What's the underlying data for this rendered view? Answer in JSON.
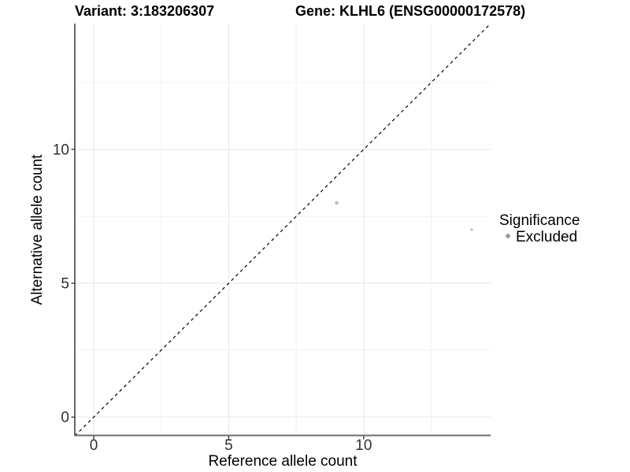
{
  "title": {
    "variant": "Variant: 3:183206307",
    "gene": "Gene: KLHL6 (ENSG00000172578)"
  },
  "chart_data": {
    "type": "scatter",
    "title": "Variant: 3:183206307 — Gene: KLHL6 (ENSG00000172578)",
    "xlabel": "Reference allele count",
    "ylabel": "Alternative allele count",
    "xlim": [
      -0.7,
      14.7
    ],
    "ylim": [
      -0.7,
      14.7
    ],
    "x_ticks": [
      0,
      5,
      10
    ],
    "y_ticks": [
      0,
      5,
      10
    ],
    "x_minor_ticks": [
      2.5,
      7.5,
      12.5
    ],
    "y_minor_ticks": [
      2.5,
      7.5,
      12.5
    ],
    "grid": true,
    "identity_line": {
      "style": "dashed",
      "from": [
        -0.7,
        -0.7
      ],
      "to": [
        14.7,
        14.7
      ],
      "color": "#000000"
    },
    "series": [
      {
        "name": "Excluded",
        "color": "#c2c2c2",
        "points": [
          {
            "x": 9,
            "y": 8,
            "r": 2.5
          },
          {
            "x": 14,
            "y": 7,
            "r": 1.8
          }
        ]
      }
    ],
    "legend": {
      "title": "Significance",
      "position": "right",
      "entries": [
        {
          "label": "Excluded",
          "color": "#9b9b9b"
        }
      ]
    }
  },
  "colors": {
    "background": "#ffffff",
    "grid_major": "#e6e6e6",
    "grid_minor": "#f2f2f2",
    "axis_line_y": "#1a1a1a",
    "axis_line_x": "#6e6e6e",
    "tick_mark": "#333333",
    "point": "#c2c2c2",
    "legend_key": "#9b9b9b"
  }
}
